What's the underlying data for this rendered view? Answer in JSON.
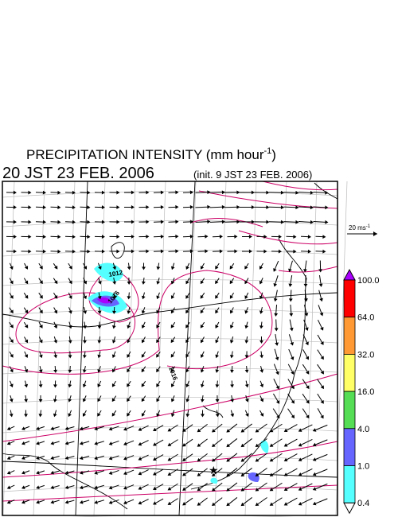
{
  "header": {
    "title": "PRECIPITATION INTENSITY (mm hour",
    "title_sup": "-1",
    "title_end": ")",
    "valid_time": "20 JST 23 FEB. 2006",
    "init_time": "(init. 9 JST 23 FEB. 2006)"
  },
  "wind_legend": {
    "label": "20 ms",
    "label_sup": "-1"
  },
  "colorbar": {
    "labels": [
      "100.0",
      "64.0",
      "32.0",
      "16.0",
      "4.0",
      "1.0",
      "0.4"
    ],
    "colors": [
      "#ff0000",
      "#ff9933",
      "#ffff66",
      "#55dd55",
      "#6666ff",
      "#55ffff"
    ],
    "top_color": "#aa00ff",
    "bottom_color": "#ffffff"
  },
  "contour_labels": [
    "1012",
    "1016",
    "1016"
  ]
}
